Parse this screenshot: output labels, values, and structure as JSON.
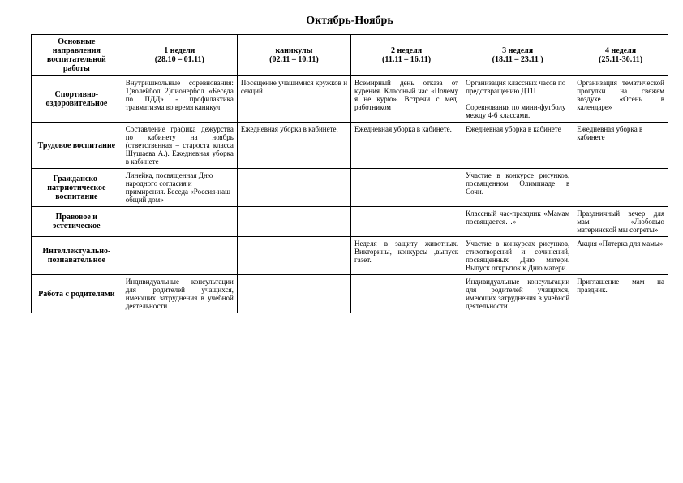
{
  "title": "Октябрь-Ноябрь",
  "headers": {
    "directions": "Основные направления воспитательной работы",
    "w1": "1 неделя",
    "w1_dates": "(28.10 – 01.11)",
    "holidays": "каникулы",
    "holidays_dates": "(02.11 – 10.11)",
    "w2": "2 неделя",
    "w2_dates": "(11.11 – 16.11)",
    "w3": "3 неделя",
    "w3_dates": "(18.11 – 23.11 )",
    "w4": "4 неделя",
    "w4_dates": "(25.11-30.11)"
  },
  "rows": {
    "sport": {
      "label": "Спортивно-оздоровительное",
      "c1": "Внутришкольные соревнования: 1)волейбол 2)пионербол «Беседа по ПДД» - профилактика травматизма во время каникул",
      "c2": "Посещение учащимися кружков и секций",
      "c3": "Всемирный день отказа от курения.  Классный час «Почему я не курю». Встречи с мед. работником",
      "c4": "Организация классных часов по предотвращению ДТП\n\nСоревнования по мини-футболу между 4-6 классами.",
      "c5": "Организация тематической прогулки на свежем воздухе «Осень в календаре»"
    },
    "labor": {
      "label": "Трудовое воспитание",
      "c1": "Составление графика дежурства по кабинету на ноябрь (ответственная – староста класса Шушаева А.). Ежедневная уборка в кабинете",
      "c2": "Ежедневная уборка в кабинете.",
      "c3": "Ежедневная уборка в кабинете.",
      "c4": "Ежедневная уборка в кабинете",
      "c5": "Ежедневная уборка в кабинете"
    },
    "civic": {
      "label": "Гражданско-патриотическое воспитание",
      "c1": "Линейка, посвященная Дню народного согласия и примирения. Беседа «Россия-наш общий дом»",
      "c2": "",
      "c3": "",
      "c4": "Участие в конкурсе рисунков, посвященном Олимпиаде в Сочи.",
      "c5": ""
    },
    "law": {
      "label": "Правовое и эстетическое",
      "c1": "",
      "c2": "",
      "c3": "",
      "c4": "Классный час-праздник «Мамам посвящается…»",
      "c5": "Праздничный вечер для мам «Любовью материнской мы согреты»"
    },
    "intellect": {
      "label": "Интеллектуально-познавательное",
      "c1": "",
      "c2": "",
      "c3": "Неделя в защиту животных. Викторины, конкурсы ,выпуск газет.",
      "c4": "Участие в конкурсах рисунков, стихотворений и сочинений, посвященных Дню матери. Выпуск открыток к Дню матери.",
      "c5": "Акция «Пятерка для мамы»"
    },
    "parents": {
      "label": "Работа с родителями",
      "c1": "Индивидуальные консультации для родителей учащихся, имеющих затруднения в учебной деятельности",
      "c2": "",
      "c3": "",
      "c4": "Индивидуальные консультации для родителей учащихся, имеющих затруднения в учебной деятельности",
      "c5": "Приглашение мам на праздник."
    }
  }
}
